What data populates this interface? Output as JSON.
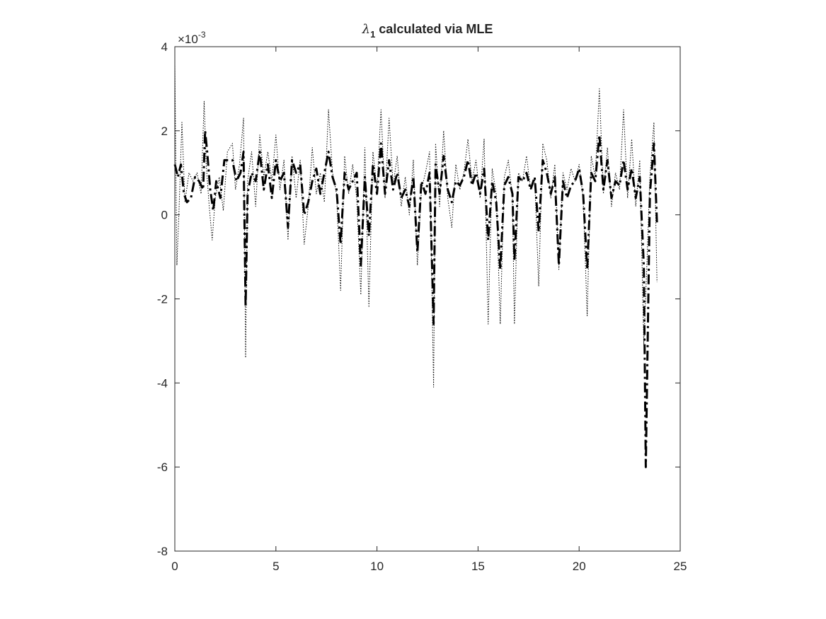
{
  "chart_data": {
    "type": "line",
    "title_main": "λ",
    "title_sub": "1",
    "title_rest": " calculated via MLE",
    "xlabel": "",
    "ylabel": "",
    "xlim": [
      0,
      25
    ],
    "ylim": [
      -8,
      4
    ],
    "xticks": [
      0,
      5,
      10,
      15,
      20,
      25
    ],
    "yticks": [
      -8,
      -6,
      -4,
      -2,
      0,
      2,
      4
    ],
    "y_exponent_base": "×10",
    "y_exponent": "-3",
    "grid": false,
    "series": [
      {
        "style": "dotted",
        "color": "#000000",
        "x": [
          0,
          0.1,
          0.2,
          0.35,
          0.5,
          0.7,
          0.9,
          1.1,
          1.3,
          1.45,
          1.55,
          1.7,
          1.85,
          2.0,
          2.2,
          2.4,
          2.6,
          2.85,
          3.0,
          3.2,
          3.4,
          3.5,
          3.6,
          3.8,
          4.0,
          4.2,
          4.4,
          4.6,
          4.8,
          5.0,
          5.2,
          5.4,
          5.6,
          5.8,
          6.0,
          6.2,
          6.4,
          6.6,
          6.8,
          7.0,
          7.2,
          7.4,
          7.6,
          7.8,
          8.0,
          8.2,
          8.4,
          8.6,
          8.8,
          9.0,
          9.2,
          9.4,
          9.6,
          9.8,
          10.0,
          10.2,
          10.4,
          10.6,
          10.8,
          11.0,
          11.2,
          11.4,
          11.6,
          11.8,
          12.0,
          12.2,
          12.4,
          12.6,
          12.8,
          12.9,
          13.1,
          13.3,
          13.5,
          13.7,
          13.9,
          14.1,
          14.3,
          14.5,
          14.7,
          14.9,
          15.1,
          15.3,
          15.5,
          15.7,
          15.9,
          16.1,
          16.3,
          16.5,
          16.7,
          16.8,
          17.0,
          17.2,
          17.4,
          17.6,
          17.8,
          18.0,
          18.2,
          18.4,
          18.6,
          18.8,
          19.0,
          19.2,
          19.4,
          19.6,
          19.8,
          20.0,
          20.2,
          20.4,
          20.6,
          20.8,
          21.0,
          21.2,
          21.4,
          21.6,
          21.8,
          22.0,
          22.2,
          22.4,
          22.6,
          22.8,
          23.0,
          23.2,
          23.35,
          23.5,
          23.7,
          23.85
        ],
        "values": [
          3.6,
          -1.2,
          0.0,
          2.2,
          0.3,
          1.0,
          0.8,
          1.0,
          0.5,
          2.7,
          1.2,
          0.2,
          -0.6,
          0.4,
          0.9,
          0.1,
          1.5,
          1.7,
          0.6,
          1.2,
          2.3,
          -3.4,
          0.8,
          1.5,
          0.2,
          1.9,
          0.9,
          1.5,
          0.8,
          1.9,
          0.6,
          1.3,
          -0.6,
          1.4,
          0.4,
          1.3,
          -0.7,
          0.2,
          1.6,
          0.5,
          1.0,
          0.3,
          2.5,
          1.0,
          0.5,
          -1.8,
          1.4,
          0.5,
          1.2,
          0.4,
          -1.9,
          1.6,
          -2.2,
          1.5,
          0.6,
          2.5,
          0.4,
          2.3,
          0.7,
          1.4,
          0.2,
          0.9,
          0.0,
          1.3,
          -1.2,
          0.6,
          1.0,
          1.5,
          -4.1,
          1.7,
          0.2,
          2.0,
          0.4,
          -0.3,
          1.2,
          0.6,
          1.0,
          1.8,
          0.8,
          1.3,
          0.4,
          1.8,
          -2.6,
          1.1,
          0.5,
          -2.6,
          0.9,
          1.3,
          0.4,
          -2.6,
          1.0,
          0.8,
          1.4,
          0.6,
          0.9,
          -1.7,
          1.7,
          1.3,
          0.4,
          1.2,
          -1.3,
          1.0,
          0.6,
          1.1,
          0.8,
          1.2,
          0.4,
          -2.4,
          1.4,
          0.9,
          3.0,
          0.5,
          1.6,
          0.2,
          1.0,
          0.6,
          2.5,
          0.4,
          1.8,
          0.2,
          1.3,
          -3.1,
          -1.2,
          0.9,
          2.2,
          -1.6
        ]
      },
      {
        "style": "dashdot",
        "color": "#000000",
        "x": [
          0,
          0.15,
          0.3,
          0.45,
          0.6,
          0.8,
          1.0,
          1.2,
          1.4,
          1.5,
          1.6,
          1.75,
          1.9,
          2.05,
          2.25,
          2.45,
          2.65,
          2.85,
          3.05,
          3.25,
          3.4,
          3.5,
          3.6,
          3.8,
          4.0,
          4.2,
          4.4,
          4.6,
          4.8,
          5.0,
          5.2,
          5.4,
          5.6,
          5.8,
          6.0,
          6.2,
          6.4,
          6.6,
          6.8,
          7.0,
          7.2,
          7.4,
          7.6,
          7.8,
          8.0,
          8.2,
          8.4,
          8.6,
          8.8,
          9.0,
          9.2,
          9.4,
          9.6,
          9.8,
          10.0,
          10.2,
          10.4,
          10.6,
          10.8,
          11.0,
          11.2,
          11.4,
          11.6,
          11.8,
          12.0,
          12.2,
          12.4,
          12.6,
          12.8,
          12.9,
          13.1,
          13.3,
          13.5,
          13.7,
          13.9,
          14.1,
          14.3,
          14.5,
          14.7,
          14.9,
          15.1,
          15.3,
          15.5,
          15.7,
          15.9,
          16.1,
          16.3,
          16.5,
          16.7,
          16.8,
          17.0,
          17.2,
          17.4,
          17.6,
          17.8,
          18.0,
          18.2,
          18.4,
          18.6,
          18.8,
          19.0,
          19.2,
          19.4,
          19.6,
          19.8,
          20.0,
          20.2,
          20.4,
          20.6,
          20.8,
          21.0,
          21.2,
          21.4,
          21.6,
          21.8,
          22.0,
          22.2,
          22.4,
          22.6,
          22.8,
          23.0,
          23.2,
          23.3,
          23.5,
          23.7,
          23.85
        ],
        "values": [
          1.2,
          0.9,
          1.2,
          0.5,
          0.3,
          0.4,
          0.9,
          0.8,
          0.6,
          2.0,
          1.5,
          0.6,
          0.1,
          0.8,
          0.4,
          1.3,
          1.3,
          1.3,
          0.8,
          1.0,
          1.5,
          -2.2,
          0.5,
          1.0,
          0.8,
          1.5,
          0.6,
          1.2,
          0.4,
          1.3,
          0.8,
          1.0,
          -0.3,
          1.3,
          1.0,
          1.2,
          0.0,
          0.3,
          0.8,
          1.1,
          0.5,
          1.0,
          1.5,
          0.9,
          0.6,
          -0.7,
          1.0,
          0.6,
          0.8,
          1.0,
          -1.2,
          0.9,
          -0.5,
          1.2,
          0.5,
          1.7,
          0.5,
          1.3,
          0.6,
          1.0,
          0.4,
          0.6,
          0.2,
          0.9,
          -0.9,
          0.8,
          0.5,
          1.0,
          -2.6,
          1.2,
          0.5,
          1.4,
          0.6,
          0.3,
          0.8,
          0.7,
          0.9,
          1.3,
          0.7,
          1.0,
          0.5,
          1.1,
          -0.6,
          0.8,
          0.3,
          -1.3,
          0.7,
          0.9,
          0.5,
          -1.1,
          0.9,
          0.8,
          1.0,
          0.6,
          0.9,
          -0.4,
          1.3,
          1.0,
          0.5,
          0.9,
          -1.2,
          0.8,
          0.4,
          0.7,
          0.8,
          1.1,
          0.5,
          -1.3,
          1.0,
          0.8,
          1.9,
          0.6,
          1.3,
          0.4,
          0.8,
          0.7,
          1.3,
          0.6,
          1.1,
          0.4,
          0.9,
          -1.2,
          -6.0,
          0.5,
          1.7,
          -0.2
        ]
      }
    ]
  }
}
